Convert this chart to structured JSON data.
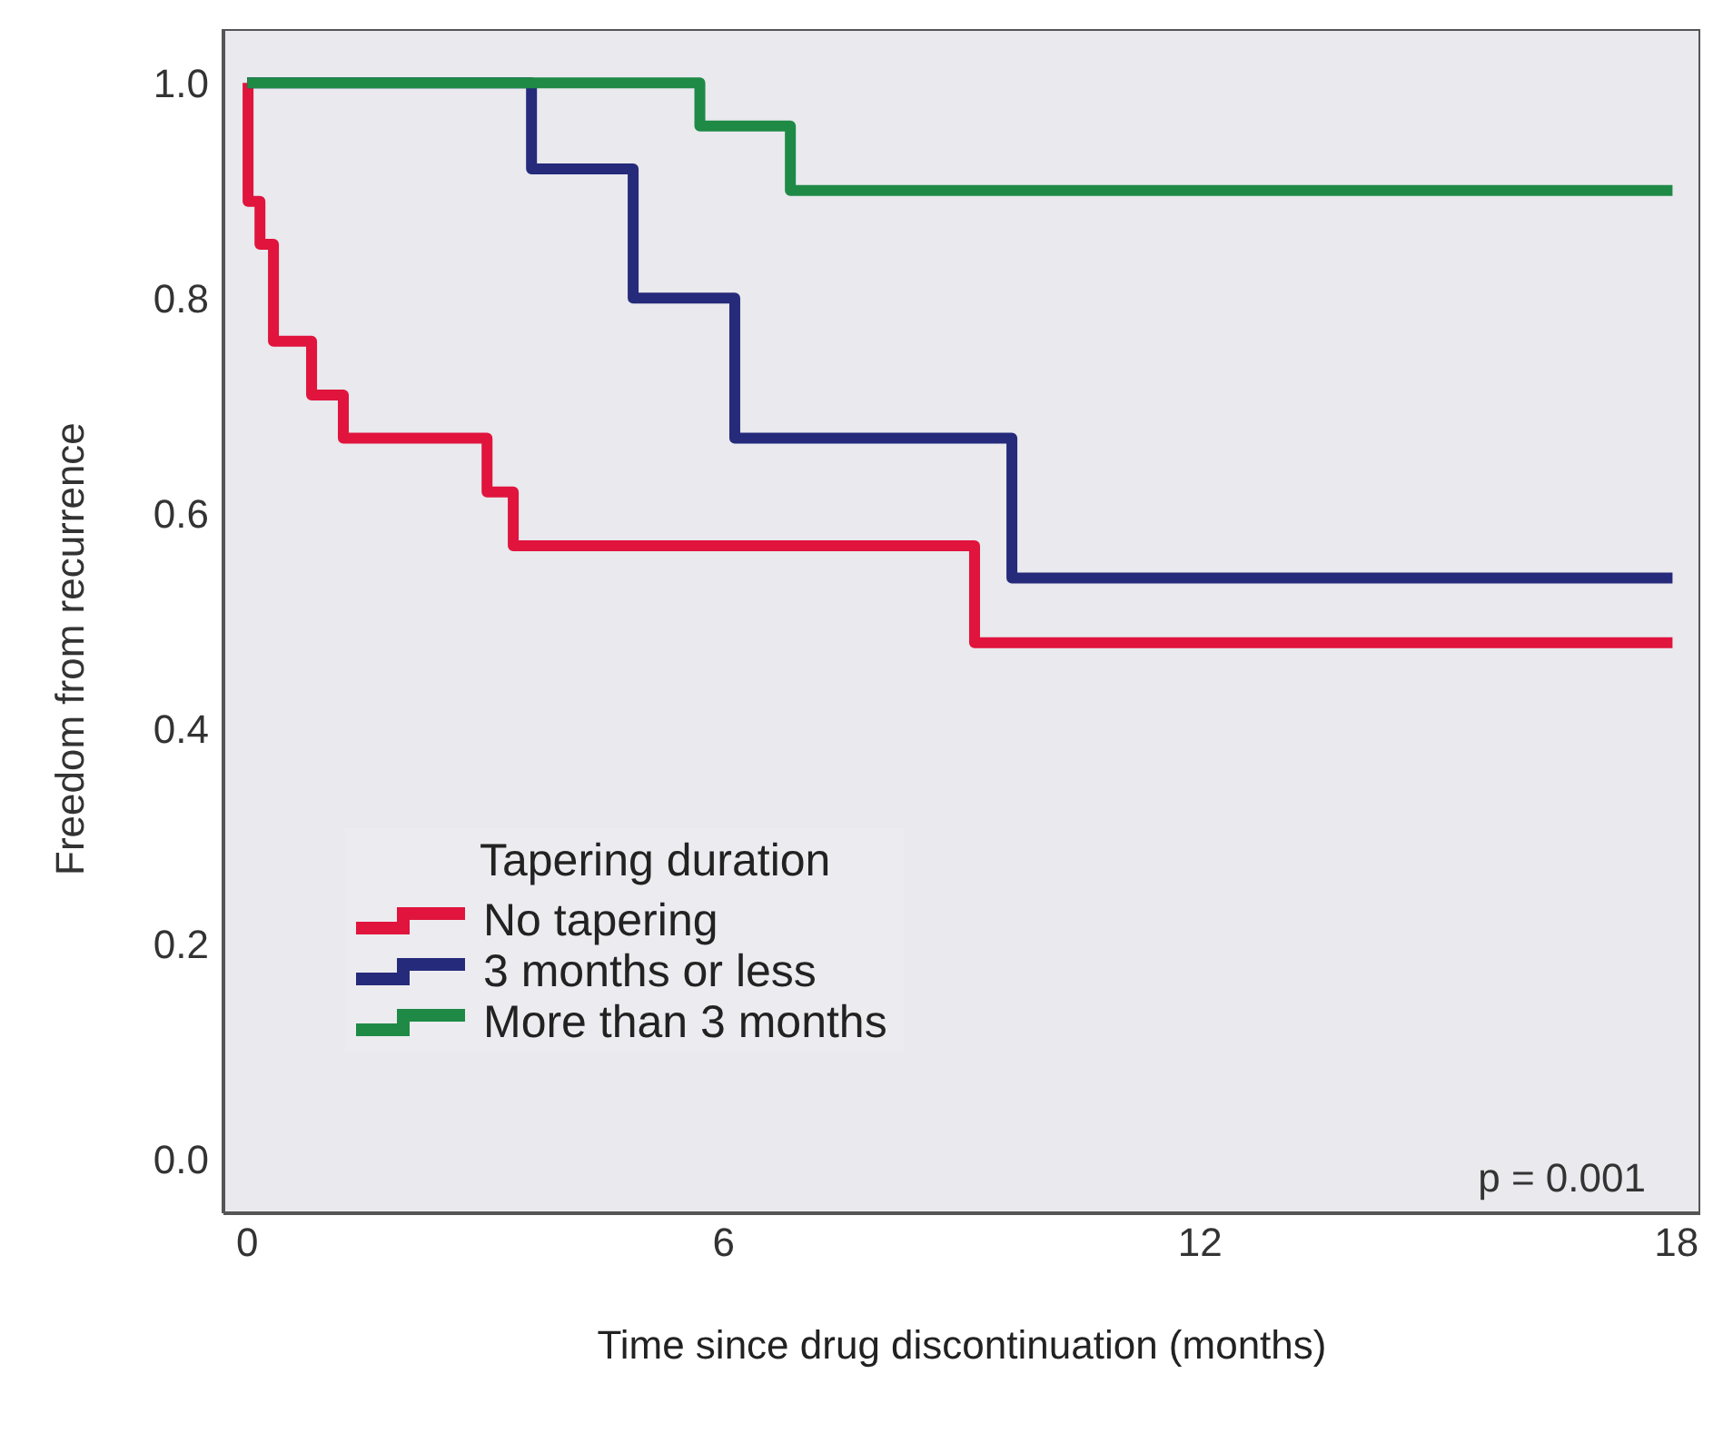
{
  "chart_data": {
    "type": "step",
    "xlabel": "Time since drug discontinuation (months)",
    "ylabel": "Freedom from recurrence",
    "legend_title": "Tapering duration",
    "xlim": [
      -0.3,
      18.3
    ],
    "xticks": [
      0,
      6,
      12,
      18
    ],
    "ylim": [
      -0.05,
      1.05
    ],
    "yticks": [
      {
        "value": 0,
        "label": "0.0"
      },
      0.2,
      0.4,
      0.6,
      0.8,
      {
        "value": 1,
        "label": "1.0"
      }
    ],
    "legend": "bottom left",
    "annotations": [
      "p = 0.001"
    ],
    "series": [
      {
        "name": "No tapering",
        "color": "#e0143c",
        "x": [
          0,
          0.01,
          0.16,
          0.33,
          0.81,
          1.21,
          3.02,
          3.35,
          9.16,
          17.95
        ],
        "values": [
          1,
          0.89,
          0.85,
          0.76,
          0.71,
          0.67,
          0.62,
          0.57,
          0.48,
          0.48
        ]
      },
      {
        "name": "3 months or less",
        "color": "#262a7a",
        "x": [
          0,
          3.58,
          4.86,
          6.14,
          9.63,
          17.95
        ],
        "values": [
          1,
          0.92,
          0.8,
          0.67,
          0.54,
          0.54
        ]
      },
      {
        "name": "More than 3 months",
        "color": "#1e8a46",
        "x": [
          0,
          5.7,
          6.84,
          17.95
        ],
        "values": [
          1,
          0.96,
          0.9,
          0.9
        ]
      }
    ]
  }
}
